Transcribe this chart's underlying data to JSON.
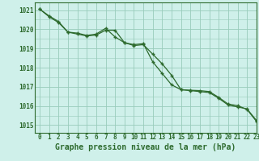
{
  "title": "Graphe pression niveau de la mer (hPa)",
  "background_color": "#cff0ea",
  "grid_color": "#99ccbb",
  "line_color": "#2d6a2d",
  "marker_color": "#2d6a2d",
  "xlim": [
    -0.5,
    23
  ],
  "ylim": [
    1014.6,
    1021.4
  ],
  "yticks": [
    1015,
    1016,
    1017,
    1018,
    1019,
    1020,
    1021
  ],
  "xticks": [
    0,
    1,
    2,
    3,
    4,
    5,
    6,
    7,
    8,
    9,
    10,
    11,
    12,
    13,
    14,
    15,
    16,
    17,
    18,
    19,
    20,
    21,
    22,
    23
  ],
  "line1_x": [
    0,
    1,
    2,
    3,
    4,
    5,
    6,
    7,
    8,
    9,
    10,
    11,
    12,
    13,
    14,
    15,
    16,
    17,
    18,
    19,
    20,
    21,
    22,
    23
  ],
  "line1_y": [
    1021.05,
    1020.65,
    1020.35,
    1019.85,
    1019.75,
    1019.65,
    1019.7,
    1019.95,
    1019.95,
    1019.3,
    1019.15,
    1019.2,
    1018.7,
    1018.2,
    1017.6,
    1016.85,
    1016.8,
    1016.75,
    1016.7,
    1016.4,
    1016.05,
    1015.95,
    1015.85,
    1015.25
  ],
  "line2_x": [
    0,
    1,
    2,
    3,
    4,
    5,
    6,
    7,
    8,
    9,
    10,
    11,
    12,
    13,
    14,
    15,
    16,
    17,
    18,
    19,
    20,
    21,
    22,
    23
  ],
  "line2_y": [
    1021.05,
    1020.7,
    1020.4,
    1019.85,
    1019.8,
    1019.68,
    1019.75,
    1020.05,
    1019.6,
    1019.3,
    1019.2,
    1019.25,
    1018.3,
    1017.7,
    1017.1,
    1016.85,
    1016.82,
    1016.8,
    1016.75,
    1016.45,
    1016.1,
    1016.02,
    1015.82,
    1015.2
  ],
  "title_fontsize": 7,
  "tick_fontsize": 5.5
}
